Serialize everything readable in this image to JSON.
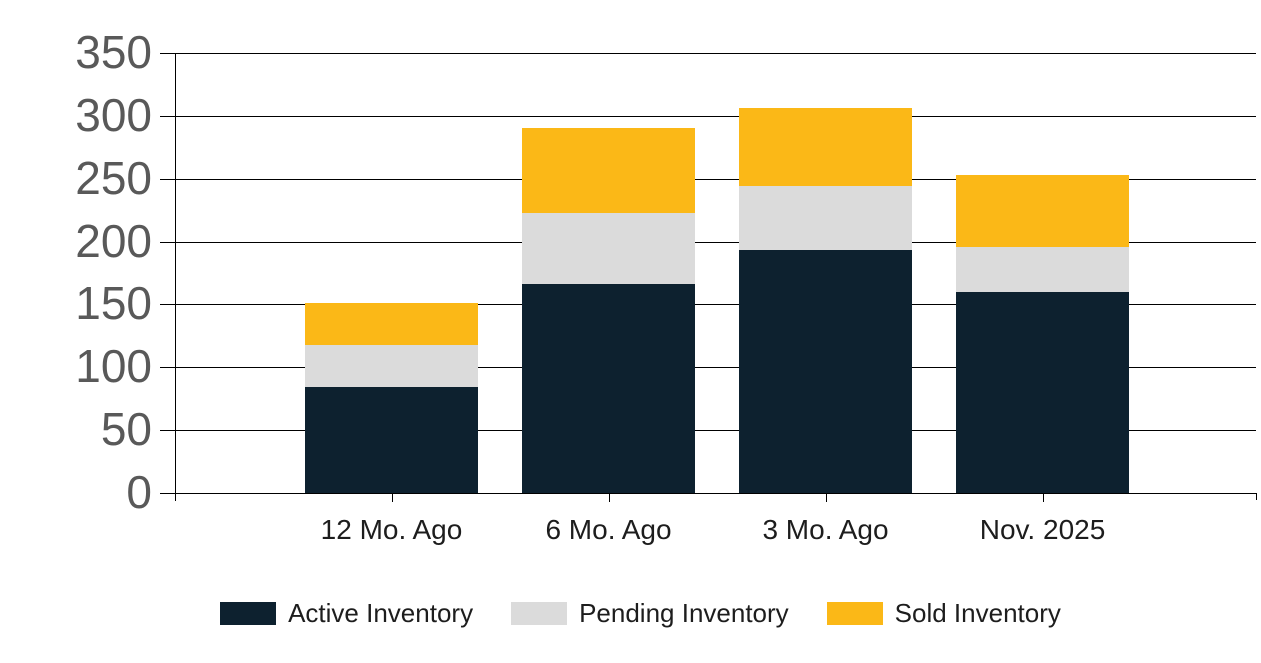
{
  "chart_data": {
    "type": "bar",
    "stacked": true,
    "title": "",
    "xlabel": "",
    "ylabel": "",
    "categories": [
      "12 Mo. Ago",
      "6 Mo. Ago",
      "3 Mo. Ago",
      "Nov. 2025"
    ],
    "series": [
      {
        "name": "Active Inventory",
        "color": "#0d212f",
        "values": [
          84,
          166,
          193,
          160
        ]
      },
      {
        "name": "Pending Inventory",
        "color": "#dbdbdb",
        "values": [
          34,
          57,
          51,
          36
        ]
      },
      {
        "name": "Sold Inventory",
        "color": "#fbb817",
        "values": [
          33,
          67,
          62,
          57
        ]
      }
    ],
    "stack_totals": [
      151,
      290,
      306,
      253
    ],
    "ylim": [
      0,
      350
    ],
    "yticks": [
      0,
      50,
      100,
      150,
      200,
      250,
      300,
      350
    ],
    "grid": true,
    "legend_position": "bottom"
  },
  "colors": {
    "background": "#ffffff",
    "gridline": "#000000",
    "y_tick_label": "#595959",
    "x_tick_label": "#1d1d1d",
    "legend_text": "#1d1d1d"
  }
}
